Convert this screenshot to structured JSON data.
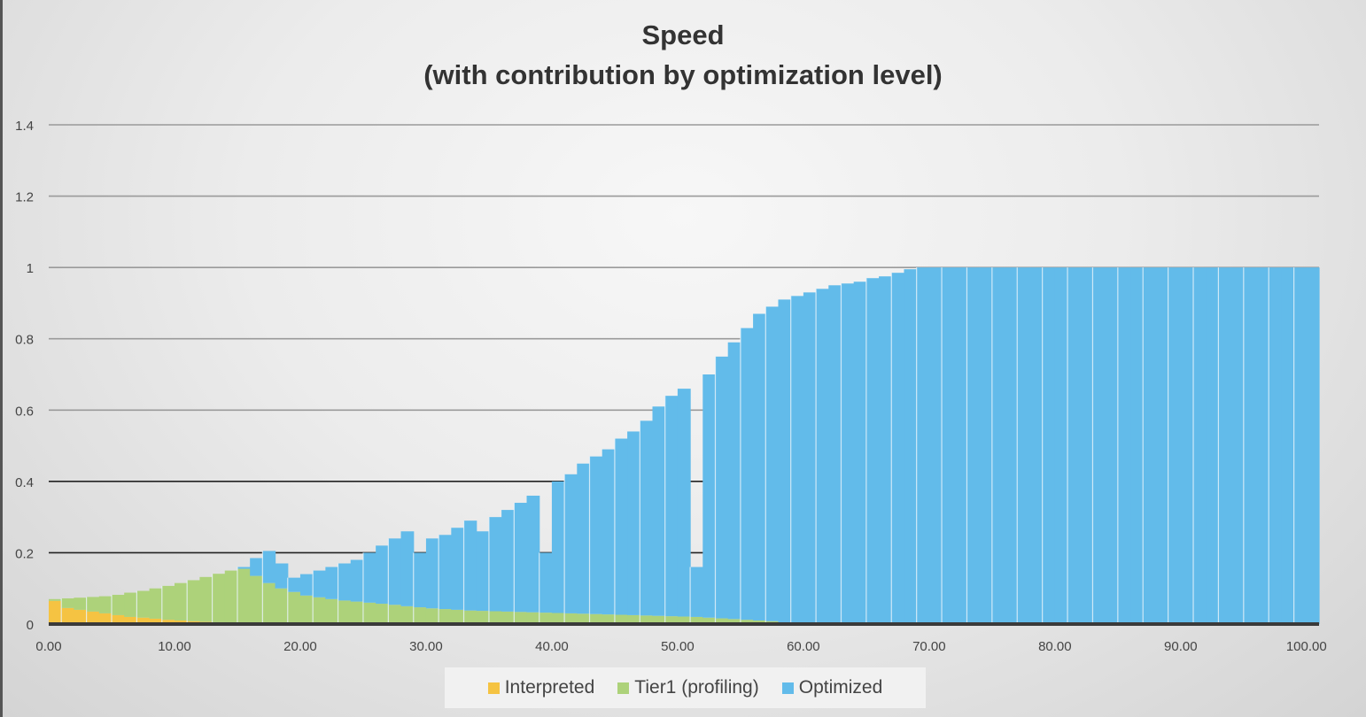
{
  "chart_data": {
    "type": "area",
    "stacked": true,
    "title": "Speed",
    "subtitle": "(with contribution by optimization level)",
    "xlabel": "",
    "ylabel": "",
    "xlim": [
      0,
      101
    ],
    "ylim": [
      0,
      1.4
    ],
    "x_ticks": [
      "0.00",
      "10.00",
      "20.00",
      "30.00",
      "40.00",
      "50.00",
      "60.00",
      "70.00",
      "80.00",
      "90.00",
      "100.00"
    ],
    "y_ticks": [
      "0",
      "0.2",
      "0.4",
      "0.6",
      "0.8",
      "1",
      "1.2",
      "1.4"
    ],
    "grid": true,
    "legend_position": "bottom",
    "x_start": 0,
    "x_step": 1,
    "series": [
      {
        "name": "Interpreted",
        "color": "#f5c342",
        "values": [
          0.065,
          0.045,
          0.04,
          0.035,
          0.03,
          0.025,
          0.02,
          0.018,
          0.015,
          0.012,
          0.01,
          0.008,
          0.006,
          0.005,
          0.004,
          0.003,
          0.003,
          0.002,
          0.002,
          0.004,
          0.002,
          0.002,
          0.001,
          0.001,
          0.001,
          0,
          0,
          0,
          0,
          0,
          0,
          0,
          0,
          0,
          0,
          0,
          0,
          0,
          0,
          0,
          0,
          0,
          0,
          0,
          0,
          0,
          0,
          0,
          0,
          0,
          0,
          0,
          0,
          0,
          0,
          0,
          0,
          0,
          0,
          0,
          0,
          0,
          0,
          0,
          0,
          0,
          0,
          0,
          0,
          0,
          0,
          0,
          0,
          0,
          0,
          0,
          0,
          0,
          0,
          0,
          0,
          0,
          0,
          0,
          0,
          0,
          0,
          0,
          0,
          0,
          0,
          0,
          0,
          0,
          0,
          0,
          0,
          0,
          0,
          0,
          0
        ]
      },
      {
        "name": "Tier1 (profiling)",
        "color": "#add27a",
        "values": [
          0.005,
          0.027,
          0.034,
          0.041,
          0.048,
          0.057,
          0.068,
          0.075,
          0.085,
          0.095,
          0.105,
          0.115,
          0.126,
          0.136,
          0.146,
          0.152,
          0.132,
          0.113,
          0.098,
          0.086,
          0.078,
          0.073,
          0.069,
          0.065,
          0.062,
          0.06,
          0.057,
          0.054,
          0.05,
          0.047,
          0.044,
          0.042,
          0.04,
          0.038,
          0.037,
          0.036,
          0.035,
          0.034,
          0.033,
          0.032,
          0.031,
          0.03,
          0.029,
          0.028,
          0.027,
          0.026,
          0.025,
          0.024,
          0.023,
          0.022,
          0.021,
          0.02,
          0.018,
          0.016,
          0.014,
          0.012,
          0.01,
          0.008,
          0.005,
          0.003,
          0,
          0,
          0,
          0,
          0,
          0,
          0,
          0,
          0,
          0,
          0,
          0,
          0,
          0,
          0,
          0,
          0,
          0,
          0,
          0,
          0,
          0,
          0,
          0,
          0,
          0,
          0,
          0,
          0,
          0,
          0,
          0,
          0,
          0,
          0,
          0,
          0,
          0,
          0,
          0,
          0
        ]
      },
      {
        "name": "Optimized",
        "color": "#62bbea",
        "values": [
          0,
          0,
          0,
          0,
          0,
          0,
          0,
          0,
          0,
          0,
          0,
          0,
          0,
          0,
          0,
          0.005,
          0.05,
          0.09,
          0.07,
          0.04,
          0.06,
          0.075,
          0.09,
          0.104,
          0.117,
          0.14,
          0.163,
          0.186,
          0.21,
          0.153,
          0.196,
          0.208,
          0.23,
          0.252,
          0.223,
          0.264,
          0.285,
          0.306,
          0.327,
          0.168,
          0.369,
          0.39,
          0.421,
          0.442,
          0.463,
          0.494,
          0.515,
          0.546,
          0.587,
          0.618,
          0.639,
          0.14,
          0.682,
          0.734,
          0.776,
          0.818,
          0.86,
          0.882,
          0.905,
          0.917,
          0.93,
          0.94,
          0.95,
          0.955,
          0.96,
          0.97,
          0.975,
          0.985,
          0.995,
          1,
          1,
          1,
          1,
          1,
          1,
          1,
          1,
          1,
          1,
          1,
          1,
          1,
          1,
          1,
          1,
          1,
          1,
          1,
          1,
          1,
          1,
          1,
          1,
          1,
          1,
          1,
          1,
          1,
          1,
          1,
          1
        ]
      }
    ]
  }
}
